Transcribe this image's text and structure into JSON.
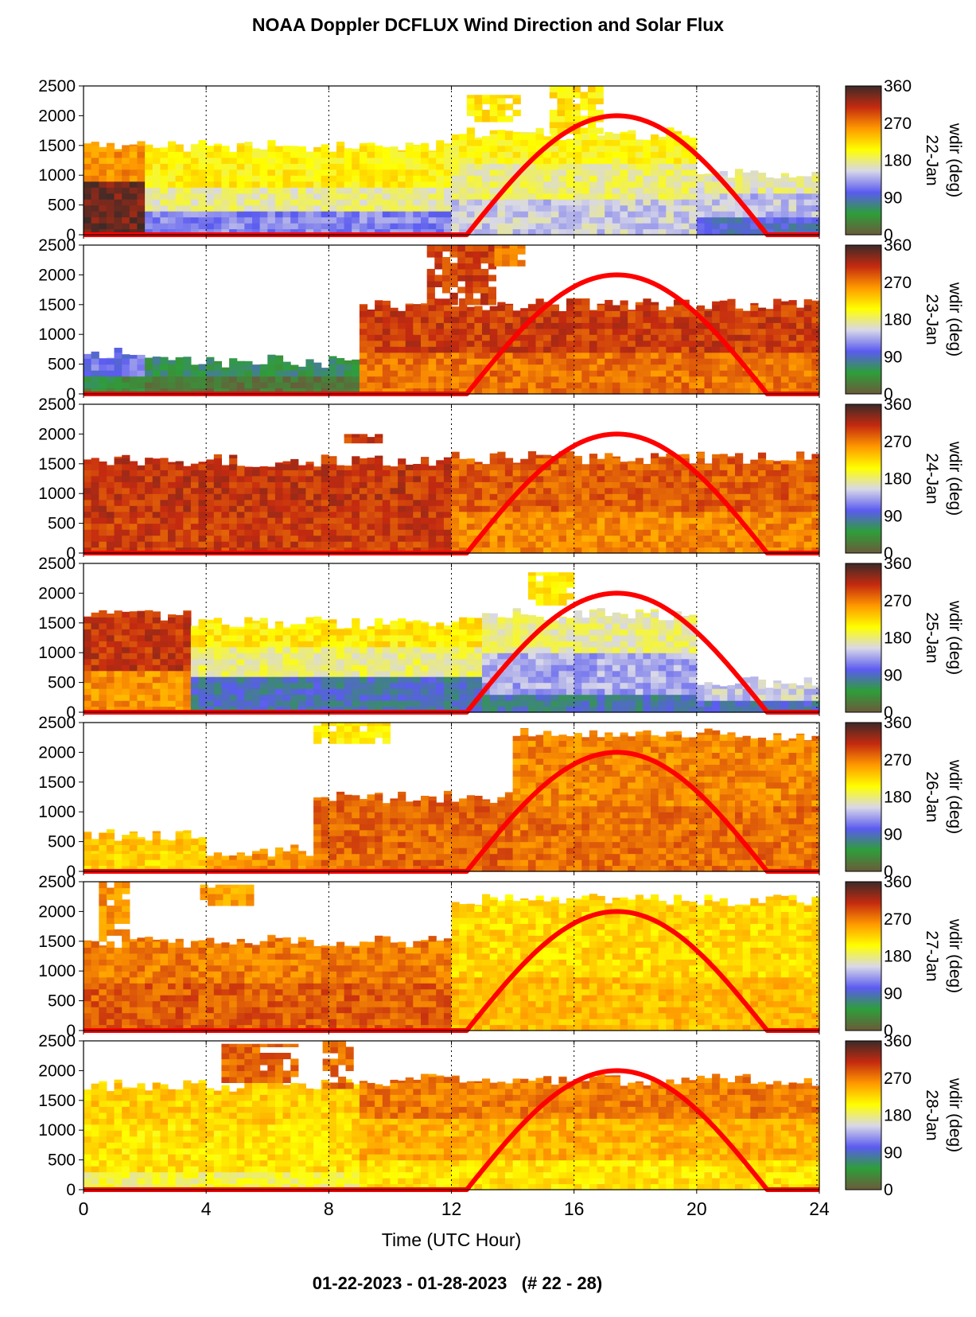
{
  "title": "NOAA Doppler DCFLUX Wind Direction and Solar Flux",
  "footer": "01-22-2023 - 01-28-2023   (# 22 - 28)",
  "chart_data": {
    "type": "heatmap",
    "title": "NOAA Doppler DCFLUX Wind Direction and Solar Flux",
    "xlabel": "Time (UTC Hour)",
    "x_ticks": [
      "0",
      "4",
      "8",
      "12",
      "16",
      "20",
      "24"
    ],
    "xlim": [
      0,
      24
    ],
    "y_ticks": [
      "0",
      "500",
      "1000",
      "1500",
      "2000",
      "2500"
    ],
    "ylim": [
      0,
      2500
    ],
    "colorbar": {
      "label": "wdir (deg)",
      "ticks": [
        "0",
        "90",
        "180",
        "270",
        "360"
      ],
      "range": [
        0,
        360
      ],
      "colors": [
        "#6b5a3a",
        "#2e9e3a",
        "#5b5bf0",
        "#d8d8e8",
        "#ffff00",
        "#ff9900",
        "#c42a10",
        "#3c2a28"
      ]
    },
    "vertical_gridlines_hours": [
      4,
      8,
      12,
      16,
      20
    ],
    "grid": "dotted vertical",
    "solar_flux_curve": {
      "color": "#ff0000",
      "start_hour": 12.5,
      "peak_hour": 17.3,
      "end_hour": 22.3,
      "peak_height": 2000
    },
    "panels": [
      {
        "label": "22-Jan",
        "top_height": 1500,
        "profile": [
          {
            "x": [
              0,
              2
            ],
            "layers": [
              [
                0,
                900,
                340
              ],
              [
                900,
                1500,
                260
              ]
            ]
          },
          {
            "x": [
              2,
              12
            ],
            "layers": [
              [
                0,
                400,
                120
              ],
              [
                400,
                800,
                175
              ],
              [
                800,
                1500,
                210
              ]
            ]
          },
          {
            "x": [
              12,
              20
            ],
            "layers": [
              [
                0,
                600,
                150
              ],
              [
                600,
                1200,
                180
              ],
              [
                1200,
                1700,
                205
              ]
            ]
          },
          {
            "x": [
              20,
              24
            ],
            "layers": [
              [
                0,
                300,
                95
              ],
              [
                300,
                700,
                145
              ],
              [
                700,
                1000,
                170
              ]
            ]
          }
        ],
        "blobs": [
          {
            "x": [
              15.2,
              16.8
            ],
            "h": [
              1700,
              2500
            ],
            "dir": 215
          },
          {
            "x": [
              12.5,
              14.2
            ],
            "h": [
              1900,
              2350
            ],
            "dir": 215
          }
        ]
      },
      {
        "label": "23-Jan",
        "top_height": 1500,
        "profile": [
          {
            "x": [
              0,
              2
            ],
            "layers": [
              [
                0,
                300,
                45
              ],
              [
                300,
                700,
                110
              ]
            ]
          },
          {
            "x": [
              2,
              9
            ],
            "layers": [
              [
                0,
                300,
                20
              ],
              [
                300,
                550,
                60
              ]
            ]
          },
          {
            "x": [
              9,
              24
            ],
            "layers": [
              [
                0,
                700,
                275
              ],
              [
                700,
                1500,
                300
              ]
            ]
          }
        ],
        "blobs": [
          {
            "x": [
              11.2,
              13.4
            ],
            "h": [
              1500,
              2500
            ],
            "dir": 300
          },
          {
            "x": [
              13.4,
              14.3
            ],
            "h": [
              2150,
              2500
            ],
            "dir": 275
          }
        ]
      },
      {
        "label": "24-Jan",
        "top_height": 1500,
        "profile": [
          {
            "x": [
              0,
              12
            ],
            "layers": [
              [
                0,
                600,
                300
              ],
              [
                600,
                1550,
                305
              ]
            ]
          },
          {
            "x": [
              12,
              24
            ],
            "layers": [
              [
                0,
                700,
                265
              ],
              [
                700,
                1600,
                285
              ]
            ]
          }
        ],
        "blobs": [
          {
            "x": [
              8.5,
              9.7
            ],
            "h": [
              1850,
              2000
            ],
            "dir": 300
          }
        ]
      },
      {
        "label": "25-Jan",
        "top_height": 1500,
        "profile": [
          {
            "x": [
              0,
              3.5
            ],
            "layers": [
              [
                0,
                700,
                260
              ],
              [
                700,
                1650,
                305
              ]
            ]
          },
          {
            "x": [
              3.5,
              13
            ],
            "layers": [
              [
                0,
                600,
                85
              ],
              [
                600,
                1100,
                180
              ],
              [
                1100,
                1500,
                215
              ]
            ]
          },
          {
            "x": [
              13,
              20
            ],
            "layers": [
              [
                0,
                300,
                80
              ],
              [
                300,
                1000,
                135
              ],
              [
                1000,
                1650,
                175
              ]
            ]
          },
          {
            "x": [
              20,
              24
            ],
            "layers": [
              [
                0,
                200,
                90
              ],
              [
                200,
                500,
                150
              ]
            ]
          }
        ],
        "blobs": [
          {
            "x": [
              14.5,
              16
            ],
            "h": [
              1800,
              2350
            ],
            "dir": 215
          }
        ]
      },
      {
        "label": "26-Jan",
        "top_height": 1500,
        "profile": [
          {
            "x": [
              0,
              4
            ],
            "layers": [
              [
                0,
                350,
                225
              ],
              [
                350,
                600,
                240
              ]
            ]
          },
          {
            "x": [
              4,
              7.5
            ],
            "layers": [
              [
                0,
                350,
                260
              ]
            ]
          },
          {
            "x": [
              7.5,
              14
            ],
            "layers": [
              [
                0,
                900,
                280
              ],
              [
                900,
                1250,
                285
              ]
            ]
          },
          {
            "x": [
              14,
              24
            ],
            "layers": [
              [
                0,
                1100,
                275
              ],
              [
                1100,
                2300,
                265
              ]
            ]
          }
        ],
        "blobs": [
          {
            "x": [
              7.5,
              9.8
            ],
            "h": [
              2150,
              2500
            ],
            "dir": 215
          }
        ]
      },
      {
        "label": "27-Jan",
        "top_height": 1500,
        "profile": [
          {
            "x": [
              0,
              12
            ],
            "layers": [
              [
                0,
                800,
                285
              ],
              [
                800,
                1500,
                270
              ]
            ]
          },
          {
            "x": [
              12,
              24
            ],
            "layers": [
              [
                0,
                900,
                240
              ],
              [
                900,
                2200,
                225
              ]
            ]
          }
        ],
        "blobs": [
          {
            "x": [
              0.5,
              1.4
            ],
            "h": [
              1500,
              2500
            ],
            "dir": 260
          },
          {
            "x": [
              3.8,
              5.5
            ],
            "h": [
              2100,
              2450
            ],
            "dir": 255
          }
        ]
      },
      {
        "label": "28-Jan",
        "top_height": 1500,
        "profile": [
          {
            "x": [
              0,
              9
            ],
            "layers": [
              [
                0,
                300,
                190
              ],
              [
                300,
                1100,
                220
              ],
              [
                1100,
                1750,
                230
              ]
            ]
          },
          {
            "x": [
              9,
              24
            ],
            "layers": [
              [
                0,
                500,
                220
              ],
              [
                500,
                1200,
                245
              ],
              [
                1200,
                1850,
                270
              ]
            ]
          }
        ],
        "blobs": [
          {
            "x": [
              4.5,
              6.8
            ],
            "h": [
              1800,
              2450
            ],
            "dir": 280
          },
          {
            "x": [
              7.8,
              8.8
            ],
            "h": [
              1700,
              2500
            ],
            "dir": 280
          }
        ]
      }
    ]
  }
}
